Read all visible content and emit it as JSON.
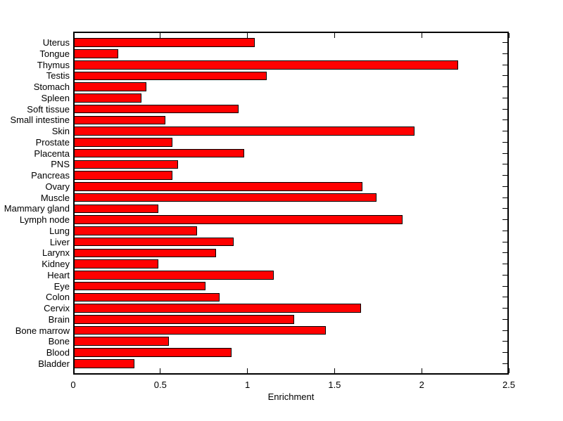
{
  "chart_data": {
    "type": "bar",
    "orientation": "horizontal",
    "title": "",
    "xlabel": "Enrichment",
    "ylabel": "",
    "categories": [
      "Uterus",
      "Tongue",
      "Thymus",
      "Testis",
      "Stomach",
      "Spleen",
      "Soft tissue",
      "Small intestine",
      "Skin",
      "Prostate",
      "Placenta",
      "PNS",
      "Pancreas",
      "Ovary",
      "Muscle",
      "Mammary gland",
      "Lymph node",
      "Lung",
      "Liver",
      "Larynx",
      "Kidney",
      "Heart",
      "Eye",
      "Colon",
      "Cervix",
      "Brain",
      "Bone marrow",
      "Bone",
      "Blood",
      "Bladder"
    ],
    "values": [
      1.04,
      0.26,
      2.21,
      1.11,
      0.42,
      0.39,
      0.95,
      0.53,
      1.96,
      0.57,
      0.98,
      0.6,
      0.57,
      1.66,
      1.74,
      0.49,
      1.89,
      0.71,
      0.92,
      0.82,
      0.49,
      1.15,
      0.76,
      0.84,
      1.65,
      1.27,
      1.45,
      0.55,
      0.91,
      0.35
    ],
    "xlim": [
      0,
      2.5
    ],
    "x_ticks": [
      0,
      0.5,
      1,
      1.5,
      2,
      2.5
    ],
    "x_tick_labels": [
      "0",
      "0.5",
      "1",
      "1.5",
      "2",
      "2.5"
    ],
    "grid": false,
    "legend": false,
    "bar_color": "#ff0000",
    "bar_edge_color": "#000000",
    "axis_color": "#000000",
    "background_color": "#ffffff"
  }
}
